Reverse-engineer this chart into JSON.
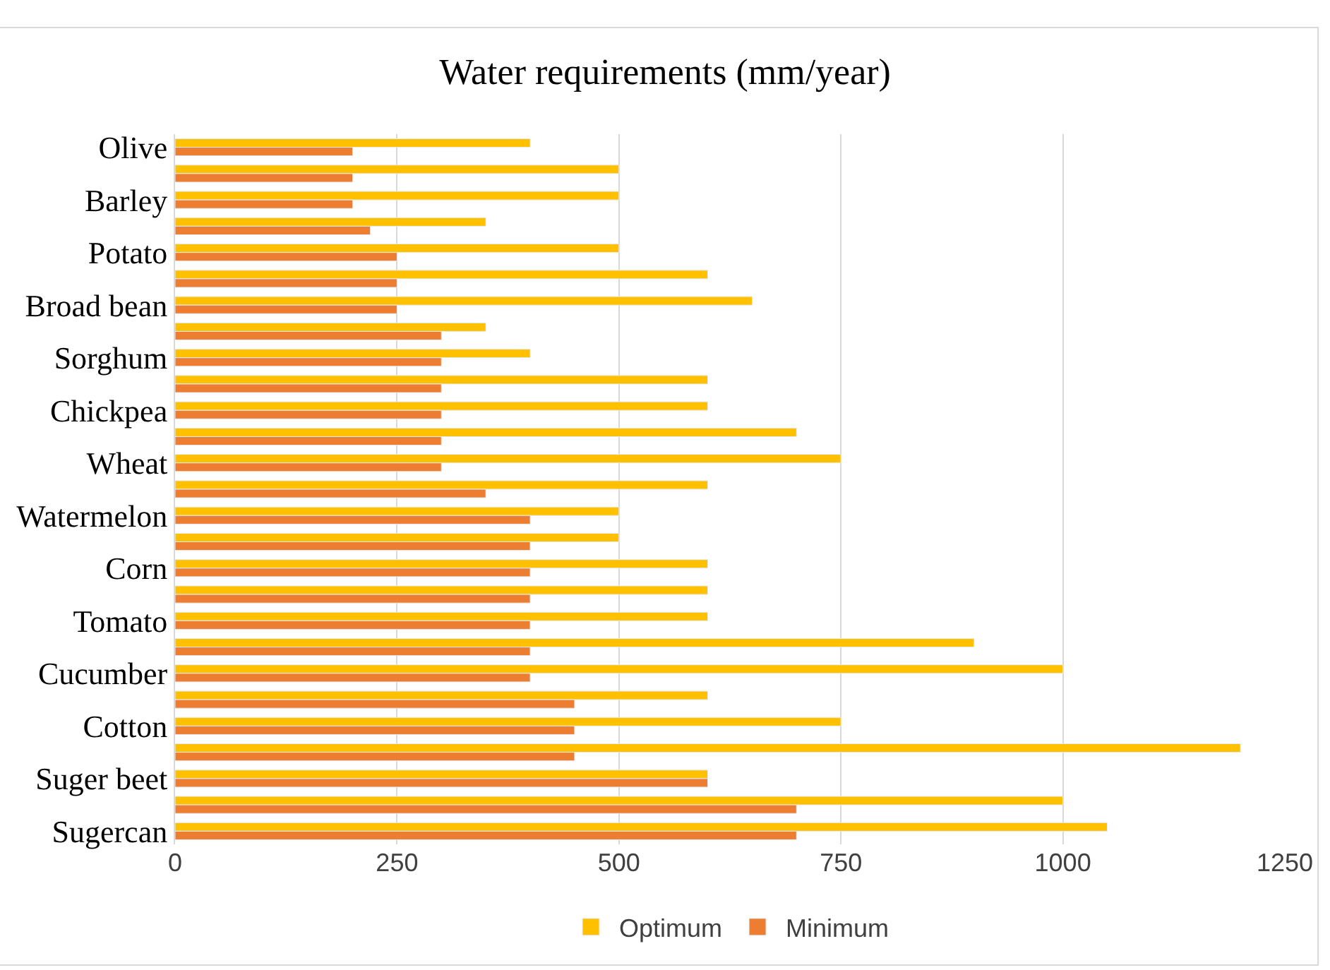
{
  "chart_data": {
    "type": "bar",
    "orientation": "horizontal",
    "title": "Water requirements (mm/year)",
    "categories": [
      "Olive",
      null,
      "Barley",
      null,
      "Potato",
      null,
      "Broad bean",
      null,
      "Sorghum",
      null,
      "Chickpea",
      null,
      "Wheat",
      null,
      "Watermelon",
      null,
      "Corn",
      null,
      "Tomato",
      null,
      "Cucumber",
      null,
      "Cotton",
      null,
      "Suger beet",
      null,
      "Sugercan"
    ],
    "series": [
      {
        "name": "Optimum",
        "color": "#ffc000",
        "values": [
          400,
          500,
          500,
          350,
          500,
          600,
          650,
          350,
          400,
          600,
          600,
          700,
          750,
          600,
          500,
          500,
          600,
          600,
          600,
          900,
          1000,
          600,
          750,
          1200,
          600,
          1000,
          1050
        ]
      },
      {
        "name": "Minimum",
        "color": "#ed7d31",
        "values": [
          200,
          200,
          200,
          220,
          250,
          250,
          250,
          300,
          300,
          300,
          300,
          300,
          300,
          350,
          400,
          400,
          400,
          400,
          400,
          400,
          400,
          450,
          450,
          450,
          600,
          700,
          700
        ]
      }
    ],
    "xlim": [
      0,
      1250
    ],
    "xticks": [
      0,
      250,
      500,
      750,
      1000,
      1250
    ],
    "grid": "x",
    "legend": "bottom"
  }
}
